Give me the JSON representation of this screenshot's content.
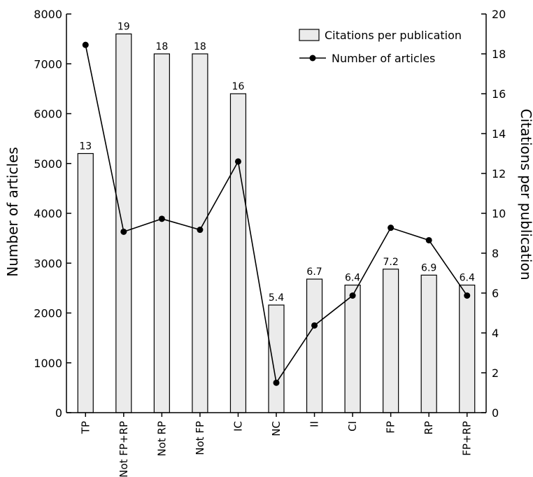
{
  "chart_data": {
    "type": "bar",
    "categories": [
      "TP",
      "Not FP+RP",
      "Not RP",
      "Not FP",
      "IC",
      "NC",
      "II",
      "CI",
      "FP",
      "RP",
      "FP+RP"
    ],
    "series": [
      {
        "name": "Citations per publication",
        "type": "bar",
        "axis": "right",
        "values": [
          13,
          19,
          18,
          18,
          16,
          5.4,
          6.7,
          6.4,
          7.2,
          6.9,
          6.4
        ],
        "labels": [
          "13",
          "19",
          "18",
          "18",
          "16",
          "5.4",
          "6.7",
          "6.4",
          "7.2",
          "6.9",
          "6.4"
        ]
      },
      {
        "name": "Number of articles",
        "type": "line",
        "axis": "left",
        "values": [
          7380,
          3630,
          3890,
          3670,
          5040,
          600,
          1750,
          2350,
          3710,
          3460,
          2350
        ]
      }
    ],
    "ylabel": "Number of articles",
    "ylabel_right": "Citations per publication",
    "ylim": [
      0,
      8000
    ],
    "ylim_right": [
      0,
      20
    ],
    "yticks": [
      "0",
      "1000",
      "2000",
      "3000",
      "4000",
      "5000",
      "6000",
      "7000",
      "8000"
    ],
    "yticks_right": [
      "0",
      "2",
      "4",
      "6",
      "8",
      "10",
      "12",
      "14",
      "16",
      "18",
      "20"
    ],
    "legend_position": "top-right",
    "grid": false
  }
}
